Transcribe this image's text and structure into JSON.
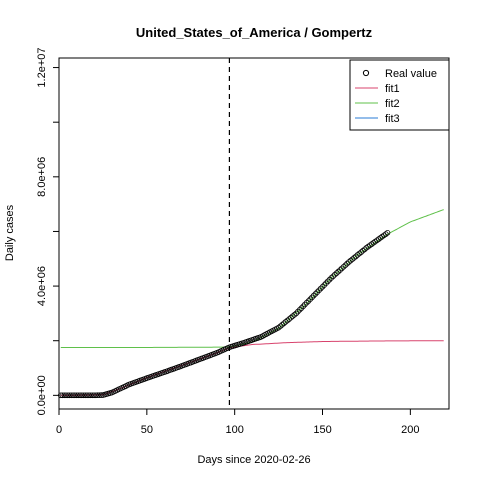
{
  "chart_data": {
    "type": "scatter",
    "title": "United_States_of_America / Gompertz",
    "xlabel": "Days since 2020-02-26",
    "ylabel": "Daily cases",
    "xlim": [
      0,
      222
    ],
    "ylim": [
      -500000,
      12350000
    ],
    "x_ticks": [
      0,
      50,
      100,
      150,
      200
    ],
    "x_tick_labels": [
      "0",
      "50",
      "100",
      "150",
      "200"
    ],
    "y_ticks": [
      0,
      4000000,
      8000000,
      12000000
    ],
    "y_tick_labels": [
      "0.0e+00",
      "4.0e+06",
      "8.0e+06",
      "1.2e+07"
    ],
    "vline": {
      "x": 97,
      "style": "dashed"
    },
    "grid": false,
    "legend_position": "top-right",
    "series": [
      {
        "name": "Real value",
        "kind": "points",
        "color": "#000000",
        "x_range": [
          1,
          187
        ],
        "keypoints": [
          [
            1,
            0
          ],
          [
            20,
            0
          ],
          [
            25,
            10000
          ],
          [
            30,
            100000
          ],
          [
            35,
            250000
          ],
          [
            40,
            400000
          ],
          [
            50,
            630000
          ],
          [
            60,
            850000
          ],
          [
            70,
            1080000
          ],
          [
            80,
            1320000
          ],
          [
            90,
            1560000
          ],
          [
            97,
            1760000
          ],
          [
            105,
            1920000
          ],
          [
            115,
            2140000
          ],
          [
            125,
            2480000
          ],
          [
            135,
            3000000
          ],
          [
            145,
            3650000
          ],
          [
            155,
            4300000
          ],
          [
            165,
            4880000
          ],
          [
            175,
            5400000
          ],
          [
            187,
            5950000
          ]
        ]
      },
      {
        "name": "fit1",
        "kind": "line",
        "color": "#d8436d",
        "keypoints": [
          [
            1,
            0
          ],
          [
            25,
            20000
          ],
          [
            35,
            250000
          ],
          [
            50,
            650000
          ],
          [
            70,
            1100000
          ],
          [
            90,
            1560000
          ],
          [
            97,
            1740000
          ],
          [
            110,
            1860000
          ],
          [
            130,
            1930000
          ],
          [
            150,
            1970000
          ],
          [
            180,
            1990000
          ],
          [
            219,
            2000000
          ]
        ]
      },
      {
        "name": "fit2",
        "kind": "line",
        "color": "#5fc04a",
        "keypoints": [
          [
            1,
            1750000
          ],
          [
            40,
            1750000
          ],
          [
            80,
            1760000
          ],
          [
            97,
            1770000
          ],
          [
            110,
            1950000
          ],
          [
            125,
            2450000
          ],
          [
            140,
            3300000
          ],
          [
            155,
            4300000
          ],
          [
            170,
            5150000
          ],
          [
            187,
            5900000
          ],
          [
            200,
            6350000
          ],
          [
            219,
            6800000
          ]
        ]
      },
      {
        "name": "fit3",
        "kind": "line",
        "color": "#2a7bd6",
        "keypoints": []
      }
    ]
  }
}
